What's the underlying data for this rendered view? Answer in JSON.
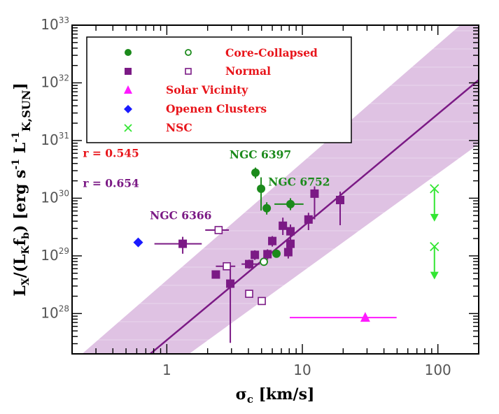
{
  "chart_data": {
    "type": "scatter",
    "title": "",
    "xlabel": "σ_c [km/s]",
    "ylabel": "L_X/(L_K f_b) [erg s^-1 L^-1_K,SUN]",
    "xscale": "log",
    "yscale": "log",
    "xlim": [
      0.2,
      200
    ],
    "ylim": [
      2e+27,
      1e+33
    ],
    "grid": false,
    "x_ticks": [
      {
        "value": 1,
        "label": "1"
      },
      {
        "value": 10,
        "label": "10"
      },
      {
        "value": 100,
        "label": "100"
      }
    ],
    "y_ticks": [
      {
        "value": 1e+28,
        "base": "10",
        "exp": "28"
      },
      {
        "value": 1e+29,
        "base": "10",
        "exp": "29"
      },
      {
        "value": 1e+30,
        "base": "10",
        "exp": "30"
      },
      {
        "value": 1e+31,
        "base": "10",
        "exp": "31"
      },
      {
        "value": 1e+32,
        "base": "10",
        "exp": "32"
      },
      {
        "value": 1e+33,
        "base": "10",
        "exp": "33"
      }
    ],
    "legend": {
      "placement": "top-left",
      "entries": [
        {
          "label": "Core-Collapsed",
          "markers": [
            "circle-filled",
            "circle-open"
          ],
          "color": "#1b8a1b"
        },
        {
          "label": "Normal",
          "markers": [
            "square-filled",
            "square-open"
          ],
          "color": "#7b1a85"
        },
        {
          "label": "Solar Vicinity",
          "markers": [
            "triangle-filled"
          ],
          "color": "#ff1aff"
        },
        {
          "label": "Openen Clusters",
          "markers": [
            "diamond-filled"
          ],
          "color": "#1a1aff"
        },
        {
          "label": "NSC",
          "markers": [
            "cross"
          ],
          "color": "#33e633"
        }
      ],
      "text_color": "#e8151b"
    },
    "annotations": [
      {
        "text": "r = 0.545",
        "color": "#e8151b",
        "x": 0.24,
        "y": 5.2e+30
      },
      {
        "text": "r = 0.654",
        "color": "#7b1a85",
        "x": 0.24,
        "y": 1.55e+30
      },
      {
        "text": "NGC 6397",
        "color": "#1b8a1b",
        "x": 2.9,
        "y": 4.9e+30
      },
      {
        "text": "NGC 6752",
        "color": "#1b8a1b",
        "x": 5.6,
        "y": 1.65e+30
      },
      {
        "text": "NGC 6366",
        "color": "#7b1a85",
        "x": 0.75,
        "y": 4.3e+29
      }
    ],
    "fit": {
      "color": "#7b1a85",
      "log_intercept": 27.54,
      "slope": 1.96,
      "band_color": "#c99ad0",
      "band_upper": [
        [
          0.237,
          2e+27
        ],
        [
          146,
          1e+33
        ]
      ],
      "band_lower": [
        [
          1.46,
          2e+27
        ],
        [
          200,
          8.7e+30
        ]
      ]
    },
    "series": [
      {
        "name": "Core-Collapsed (filled)",
        "marker": "circle-filled",
        "color": "#1b8a1b",
        "points": [
          {
            "x": 4.51,
            "y": 2.77e+30,
            "yerr": [
              2.2e+30,
              3.4e+30
            ]
          },
          {
            "x": 4.96,
            "y": 1.46e+30,
            "yerr": [
              6.1e+29,
              2.3e+30
            ]
          },
          {
            "x": 5.46,
            "y": 6.7e+29,
            "yerr": [
              5.2e+29,
              8.5e+29
            ]
          },
          {
            "x": 8.17,
            "y": 7.9e+29,
            "xerr": [
              6.22,
              10.2
            ],
            "yerr": [
              6.2e+29,
              1e+30
            ]
          },
          {
            "x": 6.44,
            "y": 1.09e+29
          }
        ]
      },
      {
        "name": "Core-Collapsed (open)",
        "marker": "circle-open",
        "color": "#1b8a1b",
        "points": [
          {
            "x": 5.2,
            "y": 7.9e+28
          }
        ]
      },
      {
        "name": "Normal (filled)",
        "marker": "square-filled",
        "color": "#7b1a85",
        "points": [
          {
            "x": 1.31,
            "y": 1.62e+29,
            "xerr": [
              0.81,
              1.81
            ],
            "yerr": [
              1.09e+29,
              2.14e+29
            ]
          },
          {
            "x": 2.3,
            "y": 4.75e+28
          },
          {
            "x": 2.94,
            "y": 3.3e+28,
            "yerr": [
              3.1e+27,
              6.6e+28
            ]
          },
          {
            "x": 4.05,
            "y": 7.2e+28,
            "xerr": [
              3.56,
              4.85
            ],
            "yerr": [
              6e+28,
              8.6e+28
            ]
          },
          {
            "x": 4.46,
            "y": 1.04e+29,
            "yerr": [
              8.5e+28,
              1.25e+29
            ]
          },
          {
            "x": 5.53,
            "y": 1.07e+29,
            "yerr": [
              8.6e+28,
              1.3e+29
            ]
          },
          {
            "x": 6.0,
            "y": 1.81e+29,
            "yerr": [
              1.45e+29,
              2.2e+29
            ]
          },
          {
            "x": 7.87,
            "y": 1.16e+29,
            "yerr": [
              9e+28,
              1.4e+29
            ]
          },
          {
            "x": 8.17,
            "y": 1.62e+29,
            "yerr": [
              1.3e+29,
              2e+29
            ]
          },
          {
            "x": 7.18,
            "y": 3.33e+29,
            "yerr": [
              2.3e+29,
              4.6e+29
            ]
          },
          {
            "x": 8.17,
            "y": 2.67e+29,
            "yerr": [
              1.5e+29,
              3.5e+29
            ]
          },
          {
            "x": 11.1,
            "y": 4.27e+29,
            "yerr": [
              2.8e+29,
              5.6e+29
            ]
          },
          {
            "x": 12.3,
            "y": 1.2e+30,
            "yerr": [
              4.3e+29,
              1.6e+30
            ]
          },
          {
            "x": 19.0,
            "y": 9.3e+29,
            "yerr": [
              3.4e+29,
              1.3e+30
            ]
          }
        ]
      },
      {
        "name": "Normal (open)",
        "marker": "square-open",
        "color": "#7b1a85",
        "points": [
          {
            "x": 2.41,
            "y": 2.8e+29,
            "xerr": [
              1.92,
              2.87
            ]
          },
          {
            "x": 2.77,
            "y": 6.6e+28,
            "xerr": [
              2.3,
              3.2
            ]
          },
          {
            "x": 4.05,
            "y": 2.2e+28
          },
          {
            "x": 5.02,
            "y": 1.65e+28
          }
        ]
      },
      {
        "name": "Solar Vicinity",
        "marker": "triangle-filled",
        "color": "#ff1aff",
        "points": [
          {
            "x": 29.1,
            "y": 8.5e+27,
            "xerr": [
              8.07,
              49.6
            ]
          }
        ]
      },
      {
        "name": "Openen Clusters",
        "marker": "diamond-filled",
        "color": "#1a1aff",
        "points": [
          {
            "x": 0.615,
            "y": 1.71e+29
          }
        ]
      },
      {
        "name": "NSC",
        "marker": "cross",
        "color": "#33e633",
        "upper_limit": true,
        "points": [
          {
            "x": 94.3,
            "y": 1.46e+30
          },
          {
            "x": 94.3,
            "y": 1.45e+29
          }
        ]
      }
    ]
  }
}
